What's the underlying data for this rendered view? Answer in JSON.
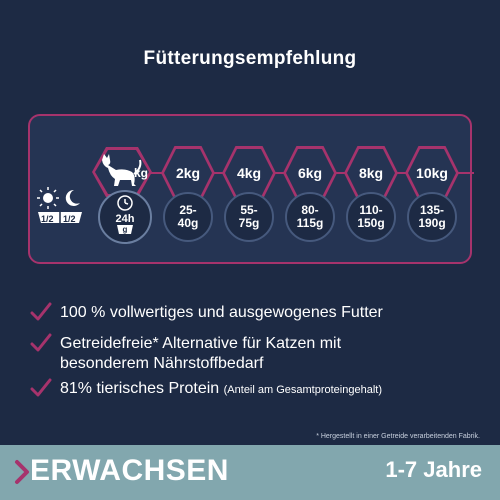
{
  "title": "Fütterungsempfehlung",
  "table": {
    "weight_suffix": "kg",
    "clock_label": "24h",
    "bowl_unit": "g",
    "portions": [
      "1/2",
      "1/2"
    ],
    "weights": [
      "2kg",
      "4kg",
      "6kg",
      "8kg",
      "10kg"
    ],
    "amounts": [
      [
        "25-",
        "40g"
      ],
      [
        "55-",
        "75g"
      ],
      [
        "80-",
        "115g"
      ],
      [
        "110-",
        "150g"
      ],
      [
        "135-",
        "190g"
      ]
    ]
  },
  "bullets": [
    {
      "text": "100 % vollwertiges und ausgewogenes Futter"
    },
    {
      "text": "Getreidefreie* Alternative für Katzen mit besonderem Nährstoffbedarf"
    },
    {
      "text": "81% tierisches Protein",
      "note": "(Anteil am Gesamtproteingehalt)"
    }
  ],
  "footnote": "* Hergestellt in einer Getreide verarbeitenden Fabrik.",
  "footer": {
    "label": "ERWACHSEN",
    "age_range": "1-7 Jahre"
  },
  "colors": {
    "background": "#1d2a44",
    "accent": "#a6336c",
    "footer": "#82a7ae"
  }
}
